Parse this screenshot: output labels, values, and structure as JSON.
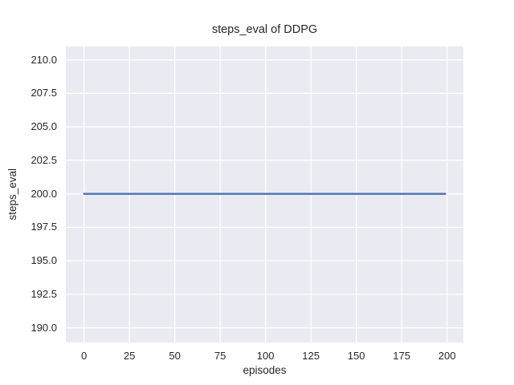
{
  "figure": {
    "title": "steps_eval of DDPG",
    "background": "#ffffff",
    "text_color": "#262626"
  },
  "chart_data": {
    "type": "line",
    "title": "steps_eval of DDPG",
    "xlabel": "episodes",
    "ylabel": "steps_eval",
    "xlim": [
      -10,
      209
    ],
    "ylim": [
      188.9,
      211.0
    ],
    "xticks": [
      0,
      25,
      50,
      75,
      100,
      125,
      150,
      175,
      200
    ],
    "xtick_labels": [
      "0",
      "25",
      "50",
      "75",
      "100",
      "125",
      "150",
      "175",
      "200"
    ],
    "yticks": [
      190.0,
      192.5,
      195.0,
      197.5,
      200.0,
      202.5,
      205.0,
      207.5,
      210.0
    ],
    "ytick_labels": [
      "190.0",
      "192.5",
      "195.0",
      "197.5",
      "200.0",
      "202.5",
      "205.0",
      "207.5",
      "210.0"
    ],
    "grid": true,
    "grid_color": "#ffffff",
    "plot_background": "#eaeaf2",
    "legend_position": "none",
    "series": [
      {
        "name": "steps_eval",
        "color": "#4c72b0",
        "line_width": 2.4,
        "x": [
          0,
          199
        ],
        "y": [
          200,
          200
        ]
      }
    ]
  }
}
